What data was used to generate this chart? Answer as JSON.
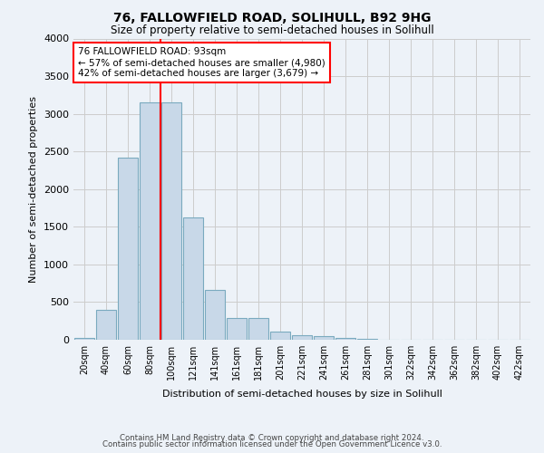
{
  "title1": "76, FALLOWFIELD ROAD, SOLIHULL, B92 9HG",
  "title2": "Size of property relative to semi-detached houses in Solihull",
  "xlabel": "Distribution of semi-detached houses by size in Solihull",
  "ylabel": "Number of semi-detached properties",
  "categories": [
    "20sqm",
    "40sqm",
    "60sqm",
    "80sqm",
    "100sqm",
    "121sqm",
    "141sqm",
    "161sqm",
    "181sqm",
    "201sqm",
    "221sqm",
    "241sqm",
    "261sqm",
    "281sqm",
    "301sqm",
    "322sqm",
    "342sqm",
    "362sqm",
    "382sqm",
    "402sqm",
    "422sqm"
  ],
  "values": [
    30,
    395,
    2420,
    3150,
    3150,
    1630,
    665,
    285,
    285,
    110,
    60,
    50,
    25,
    10,
    5,
    2,
    2,
    2,
    2,
    1,
    1
  ],
  "bar_color": "#c8d8e8",
  "bar_edge_color": "#7aaabf",
  "vline_x": 3.5,
  "annotation_text": "76 FALLOWFIELD ROAD: 93sqm\n← 57% of semi-detached houses are smaller (4,980)\n42% of semi-detached houses are larger (3,679) →",
  "annotation_box_color": "white",
  "annotation_box_edge_color": "red",
  "vline_color": "red",
  "ylim": [
    0,
    4000
  ],
  "yticks": [
    0,
    500,
    1000,
    1500,
    2000,
    2500,
    3000,
    3500,
    4000
  ],
  "grid_color": "#cccccc",
  "background_color": "#edf2f8",
  "footer1": "Contains HM Land Registry data © Crown copyright and database right 2024.",
  "footer2": "Contains public sector information licensed under the Open Government Licence v3.0."
}
